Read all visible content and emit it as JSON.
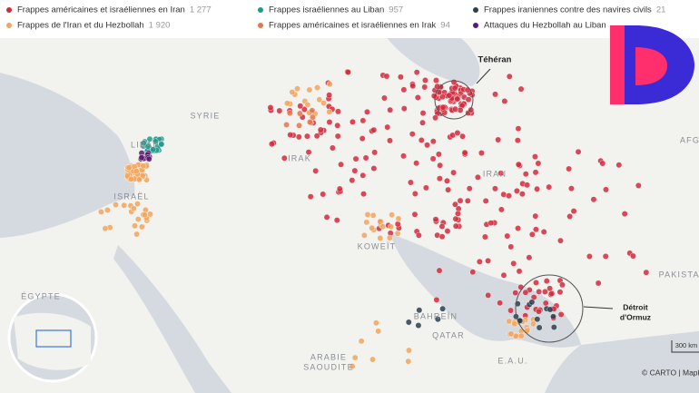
{
  "legend": {
    "items": [
      {
        "label": "Frappes américaines et israéliennes en Iran",
        "count": "1 277",
        "color": "#d42a3c"
      },
      {
        "label": "Frappes israéliennes au Liban",
        "count": "957",
        "color": "#1f9a8a"
      },
      {
        "label": "Frappes iraniennes contre des navires civils",
        "count": "21",
        "color": "#2d3e4e"
      },
      {
        "label": "Frappes de l'Iran et du Hezbollah",
        "count": "1 920",
        "color": "#f2a65e"
      },
      {
        "label": "Frappes américaines et israéliennes en Irak",
        "count": "94",
        "color": "#e8754a"
      },
      {
        "label": "Attaques du Hezbollah au Liban",
        "color": "#5b1a6e"
      }
    ]
  },
  "places": [
    "SYRIE",
    "IRAK",
    "IRAN",
    "KOWEÏT",
    "BAHREÏN",
    "QATAR",
    "E.A.U.",
    "ARABIE",
    "SAOUDITE",
    "ÉGYPTE",
    "ISRAËL",
    "LIBAN",
    "PAKISTAN",
    "AFG"
  ],
  "annotations": [
    "Téhéran",
    "Détroit",
    "d'Ormuz"
  ],
  "scale": "300 km",
  "credit": "© CARTO | Mapl"
}
